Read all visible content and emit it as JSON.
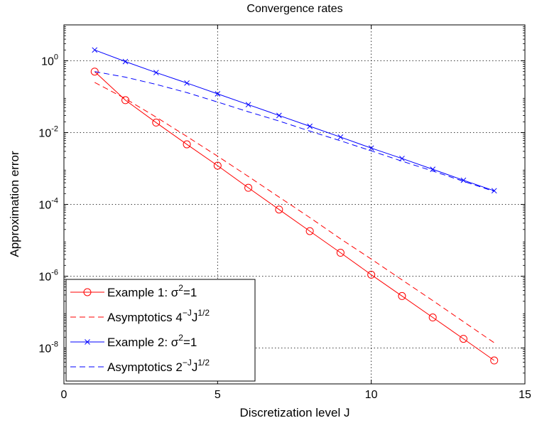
{
  "chart_data": {
    "type": "line",
    "title": "Convergence rates",
    "xlabel": "Discretization level J",
    "ylabel": "Approximation error",
    "xlim": [
      0,
      15
    ],
    "ylim_log10": [
      -9,
      1
    ],
    "yscale": "log",
    "grid": true,
    "legend_position": "bottom-left",
    "x_ticks": [
      {
        "value": 0,
        "label": "0"
      },
      {
        "value": 5,
        "label": "5"
      },
      {
        "value": 10,
        "label": "10"
      },
      {
        "value": 15,
        "label": "15"
      }
    ],
    "y_ticks": [
      {
        "exp": 0,
        "base": "10",
        "sup": "0"
      },
      {
        "exp": -2,
        "base": "10",
        "sup": "-2"
      },
      {
        "exp": -4,
        "base": "10",
        "sup": "-4"
      },
      {
        "exp": -6,
        "base": "10",
        "sup": "-6"
      },
      {
        "exp": -8,
        "base": "10",
        "sup": "-8"
      }
    ],
    "x": [
      1,
      2,
      3,
      4,
      5,
      6,
      7,
      8,
      9,
      10,
      11,
      12,
      13,
      14
    ],
    "series": [
      {
        "key": "ex1",
        "legend_parts": [
          {
            "text": "Example 1: σ"
          },
          {
            "text": "2",
            "sup": true
          },
          {
            "text": "=1"
          }
        ],
        "color": "#ff0000",
        "style": "solid",
        "marker": "circle",
        "values": [
          0.5,
          0.08,
          0.019,
          0.0047,
          0.0012,
          0.00029,
          7.2e-05,
          1.8e-05,
          4.5e-06,
          1.1e-06,
          2.8e-07,
          7.1e-08,
          1.8e-08,
          4.5e-09
        ]
      },
      {
        "key": "asym1",
        "legend_parts": [
          {
            "text": "Asymptotics 4"
          },
          {
            "text": "−J",
            "sup": true
          },
          {
            "text": "J"
          },
          {
            "text": "1/2",
            "sup": true
          }
        ],
        "color": "#ff0000",
        "style": "dashed",
        "marker": "none",
        "values": [
          0.25,
          0.088,
          0.027,
          0.0078,
          0.0022,
          0.0006,
          0.00016,
          4.3e-05,
          1.1e-05,
          3e-06,
          7.9e-07,
          2.1e-07,
          5.4e-08,
          1.4e-08
        ]
      },
      {
        "key": "ex2",
        "legend_parts": [
          {
            "text": "Example 2: σ"
          },
          {
            "text": "2",
            "sup": true
          },
          {
            "text": "=1"
          }
        ],
        "color": "#0000ff",
        "style": "solid",
        "marker": "x",
        "values": [
          2.0,
          0.95,
          0.47,
          0.24,
          0.12,
          0.06,
          0.03,
          0.015,
          0.0075,
          0.0037,
          0.0019,
          0.00095,
          0.00047,
          0.00024
        ]
      },
      {
        "key": "asym2",
        "legend_parts": [
          {
            "text": "Asymptotics 2"
          },
          {
            "text": "−J",
            "sup": true
          },
          {
            "text": "J"
          },
          {
            "text": "1/2",
            "sup": true
          }
        ],
        "color": "#0000ff",
        "style": "dashed",
        "marker": "none",
        "values": [
          0.5,
          0.35,
          0.22,
          0.13,
          0.071,
          0.038,
          0.021,
          0.011,
          0.0059,
          0.0031,
          0.0016,
          0.00085,
          0.00044,
          0.00023
        ]
      }
    ]
  }
}
